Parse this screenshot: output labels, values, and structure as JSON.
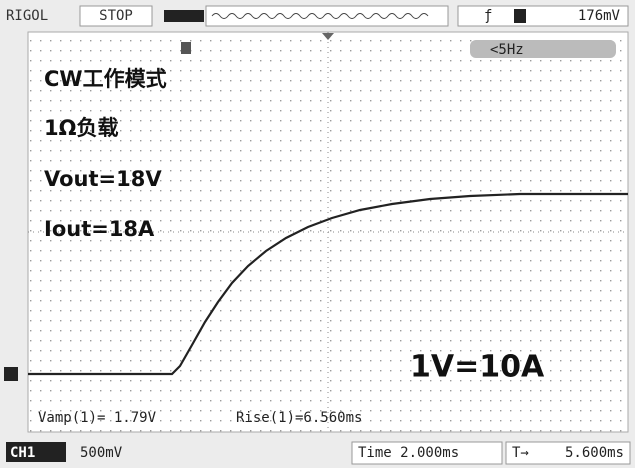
{
  "status_bar": {
    "brand": "RIGOL",
    "run_state": "STOP",
    "trigger_level": "176mV"
  },
  "screen": {
    "trigger_frequency": "<5Hz",
    "annotations": [
      "CW工作模式",
      "1Ω负载",
      "Vout=18V",
      "Iout=18A"
    ],
    "scale_note": "1V=10A",
    "measurements": [
      "Vamp(1)= 1.79V",
      "Rise(1)=6.560ms"
    ]
  },
  "bottom_bar": {
    "channel": "CH1",
    "volts_per_div": "500mV",
    "timebase": "Time 2.000ms",
    "trigger_offset": "5.600ms"
  }
}
